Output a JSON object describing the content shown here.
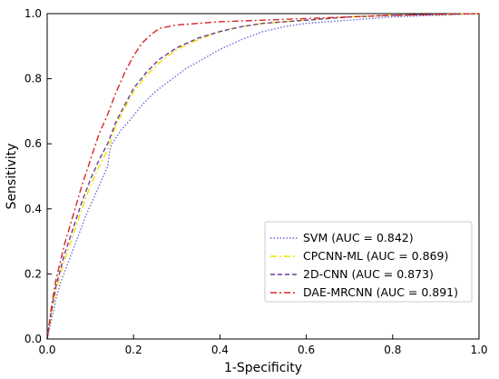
{
  "chart_data": {
    "type": "line",
    "title": "",
    "xlabel": "1-Specificity",
    "ylabel": "Sensitivity",
    "xlim": [
      0,
      1
    ],
    "ylim": [
      0,
      1
    ],
    "xticks": [
      "0.0",
      "0.2",
      "0.4",
      "0.6",
      "0.8",
      "1.0"
    ],
    "yticks": [
      "0.0",
      "0.2",
      "0.4",
      "0.6",
      "0.8",
      "1.0"
    ],
    "grid": false,
    "legend_position": "lower-right",
    "series": [
      {
        "name": "SVM (AUC = 0.842)",
        "color": "#6b6bd6",
        "dash": "dotted",
        "points": [
          [
            0,
            0
          ],
          [
            0.01,
            0.06
          ],
          [
            0.02,
            0.12
          ],
          [
            0.03,
            0.17
          ],
          [
            0.05,
            0.24
          ],
          [
            0.07,
            0.31
          ],
          [
            0.09,
            0.38
          ],
          [
            0.11,
            0.44
          ],
          [
            0.13,
            0.5
          ],
          [
            0.14,
            0.53
          ],
          [
            0.145,
            0.58
          ],
          [
            0.15,
            0.6
          ],
          [
            0.17,
            0.64
          ],
          [
            0.19,
            0.67
          ],
          [
            0.22,
            0.72
          ],
          [
            0.25,
            0.76
          ],
          [
            0.28,
            0.79
          ],
          [
            0.32,
            0.83
          ],
          [
            0.36,
            0.86
          ],
          [
            0.4,
            0.89
          ],
          [
            0.45,
            0.92
          ],
          [
            0.5,
            0.945
          ],
          [
            0.55,
            0.96
          ],
          [
            0.6,
            0.97
          ],
          [
            0.7,
            0.98
          ],
          [
            0.8,
            0.99
          ],
          [
            0.9,
            0.995
          ],
          [
            1.0,
            1.0
          ]
        ]
      },
      {
        "name": "CPCNN-ML (AUC = 0.869)",
        "color": "#f0e000",
        "dash": "dashdot",
        "points": [
          [
            0,
            0
          ],
          [
            0.01,
            0.08
          ],
          [
            0.02,
            0.15
          ],
          [
            0.04,
            0.24
          ],
          [
            0.06,
            0.32
          ],
          [
            0.08,
            0.4
          ],
          [
            0.1,
            0.47
          ],
          [
            0.12,
            0.53
          ],
          [
            0.14,
            0.58
          ],
          [
            0.16,
            0.66
          ],
          [
            0.18,
            0.71
          ],
          [
            0.2,
            0.76
          ],
          [
            0.23,
            0.81
          ],
          [
            0.26,
            0.85
          ],
          [
            0.3,
            0.89
          ],
          [
            0.35,
            0.92
          ],
          [
            0.4,
            0.945
          ],
          [
            0.45,
            0.96
          ],
          [
            0.5,
            0.97
          ],
          [
            0.6,
            0.98
          ],
          [
            0.7,
            0.99
          ],
          [
            0.8,
            0.995
          ],
          [
            1.0,
            1.0
          ]
        ]
      },
      {
        "name": "2D-CNN (AUC = 0.873)",
        "color": "#6a3d9a",
        "dash": "dashed",
        "points": [
          [
            0,
            0
          ],
          [
            0.01,
            0.09
          ],
          [
            0.02,
            0.16
          ],
          [
            0.04,
            0.26
          ],
          [
            0.06,
            0.34
          ],
          [
            0.08,
            0.42
          ],
          [
            0.1,
            0.49
          ],
          [
            0.12,
            0.55
          ],
          [
            0.14,
            0.6
          ],
          [
            0.16,
            0.67
          ],
          [
            0.18,
            0.72
          ],
          [
            0.2,
            0.77
          ],
          [
            0.23,
            0.82
          ],
          [
            0.26,
            0.86
          ],
          [
            0.3,
            0.895
          ],
          [
            0.35,
            0.925
          ],
          [
            0.4,
            0.945
          ],
          [
            0.45,
            0.96
          ],
          [
            0.5,
            0.97
          ],
          [
            0.6,
            0.98
          ],
          [
            0.7,
            0.99
          ],
          [
            0.8,
            0.995
          ],
          [
            1.0,
            1.0
          ]
        ]
      },
      {
        "name": "DAE-MRCNN (AUC = 0.891)",
        "color": "#d62728",
        "dash": "dashdot",
        "points": [
          [
            0,
            0
          ],
          [
            0.01,
            0.1
          ],
          [
            0.02,
            0.18
          ],
          [
            0.04,
            0.29
          ],
          [
            0.06,
            0.38
          ],
          [
            0.08,
            0.47
          ],
          [
            0.1,
            0.55
          ],
          [
            0.12,
            0.63
          ],
          [
            0.14,
            0.69
          ],
          [
            0.16,
            0.76
          ],
          [
            0.18,
            0.82
          ],
          [
            0.2,
            0.87
          ],
          [
            0.22,
            0.91
          ],
          [
            0.24,
            0.935
          ],
          [
            0.26,
            0.955
          ],
          [
            0.3,
            0.965
          ],
          [
            0.35,
            0.97
          ],
          [
            0.4,
            0.975
          ],
          [
            0.5,
            0.98
          ],
          [
            0.6,
            0.985
          ],
          [
            0.7,
            0.99
          ],
          [
            0.8,
            0.995
          ],
          [
            1.0,
            1.0
          ]
        ]
      }
    ]
  }
}
